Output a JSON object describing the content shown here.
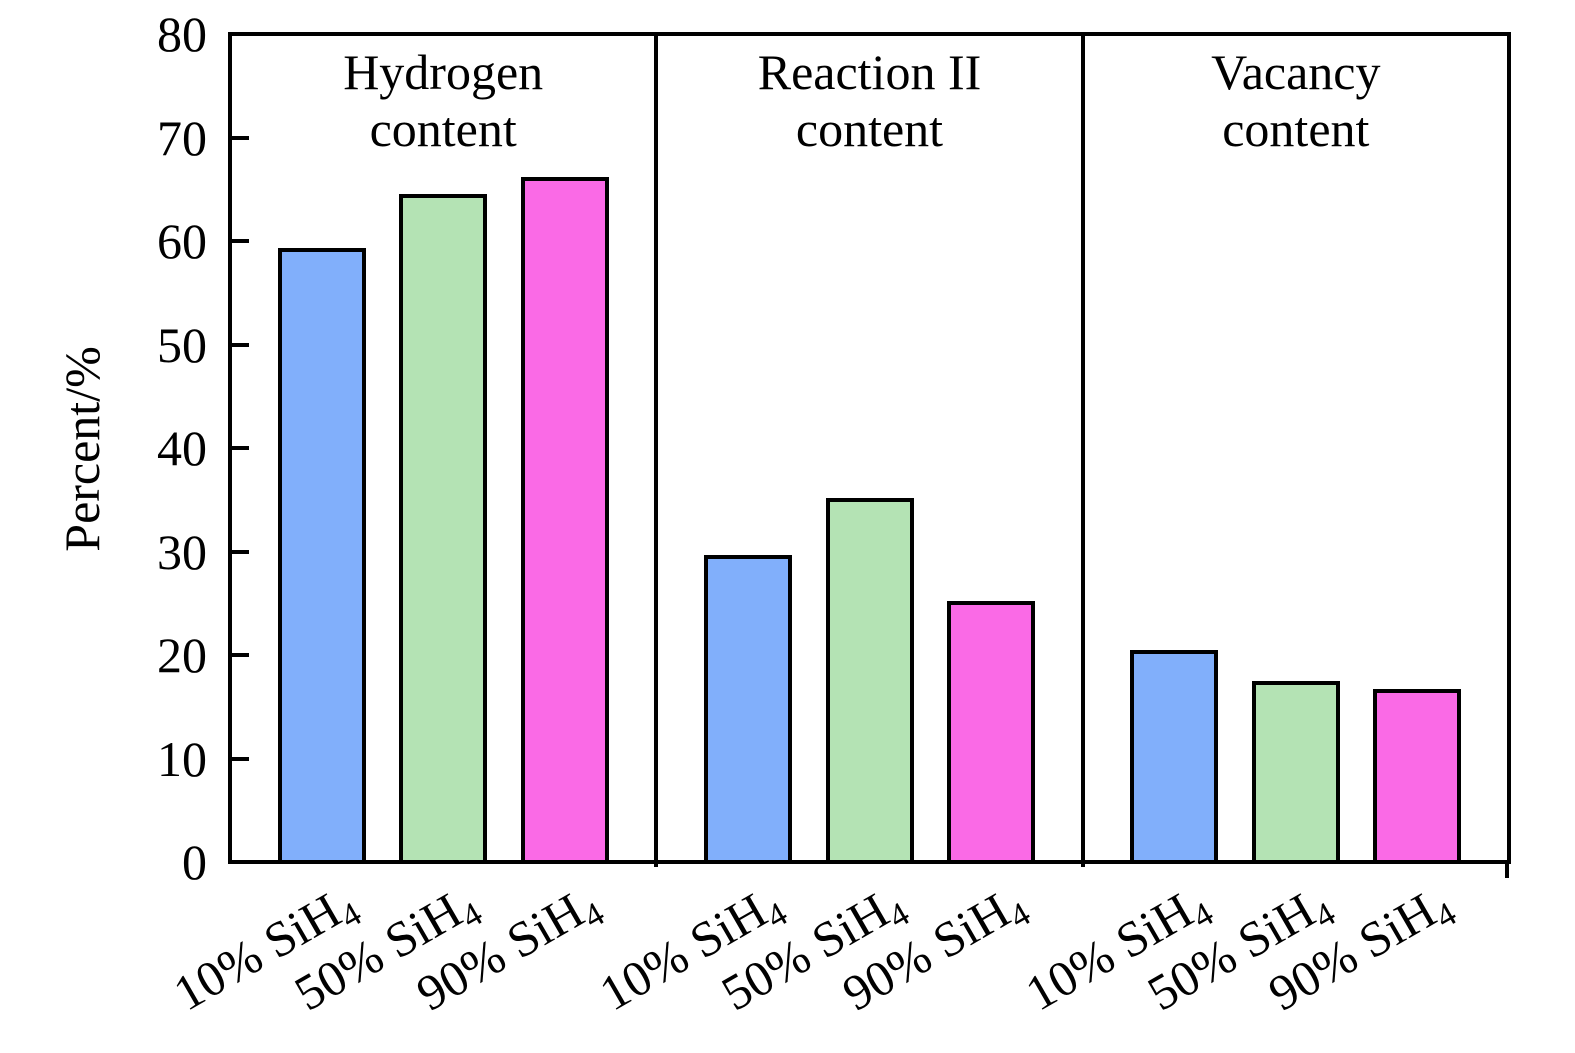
{
  "chart_data": {
    "type": "bar",
    "title": "",
    "xlabel": "",
    "ylabel": "Percent/%",
    "ylim": [
      0,
      80
    ],
    "yticks": [
      0,
      10,
      20,
      30,
      40,
      50,
      60,
      70,
      80
    ],
    "grid": false,
    "legend": "none",
    "categories": [
      "10% SiH4",
      "50% SiH4",
      "90% SiH4"
    ],
    "bar_colors": [
      "#81AFFB",
      "#B4E3B4",
      "#FA6AE6"
    ],
    "bar_edge_color": "#000000",
    "background_color": "#FFFFFF",
    "panels": [
      {
        "title": "Hydrogen content",
        "title_lines": [
          "Hydrogen",
          "content"
        ],
        "values": [
          59.1,
          64.3,
          66.0
        ]
      },
      {
        "title": "Reaction II content",
        "title_lines": [
          "Reaction II",
          "content"
        ],
        "values": [
          29.5,
          35.0,
          25.0
        ]
      },
      {
        "title": "Vacancy content",
        "title_lines": [
          "Vacancy",
          "content"
        ],
        "values": [
          20.3,
          17.3,
          16.5
        ]
      }
    ]
  }
}
